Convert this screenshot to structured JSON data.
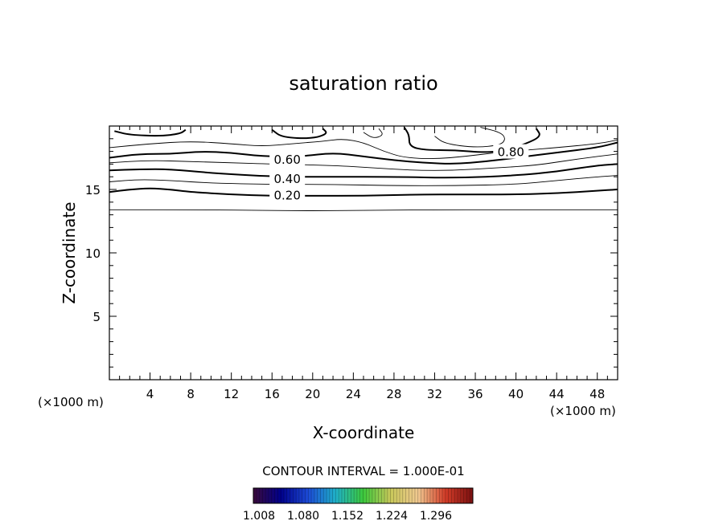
{
  "chart_data": {
    "type": "contour",
    "title": "saturation ratio",
    "xlabel": "X-coordinate",
    "ylabel": "Z-coordinate",
    "x_unit_label": "(×1000 m)",
    "y_unit_label": "(×1000 m)",
    "xlim": [
      0,
      50
    ],
    "ylim": [
      0,
      20
    ],
    "x_ticks": [
      4,
      8,
      12,
      16,
      20,
      24,
      28,
      32,
      36,
      40,
      44,
      48
    ],
    "y_ticks": [
      5,
      10,
      15
    ],
    "contour_interval_text": "CONTOUR INTERVAL = 1.000E-01",
    "contour_labels": [
      {
        "text": "0.20",
        "x": 17.5,
        "y": 14.6
      },
      {
        "text": "0.40",
        "x": 17.5,
        "y": 15.9
      },
      {
        "text": "0.60",
        "x": 17.5,
        "y": 17.4
      },
      {
        "text": "0.80",
        "x": 39.5,
        "y": 18.0
      }
    ],
    "contours": [
      {
        "level": 0.1,
        "bold": false,
        "points": [
          [
            0,
            13.4
          ],
          [
            10,
            13.4
          ],
          [
            20,
            13.3
          ],
          [
            30,
            13.4
          ],
          [
            40,
            13.4
          ],
          [
            50,
            13.4
          ]
        ]
      },
      {
        "level": 0.2,
        "bold": true,
        "points": [
          [
            0,
            14.8
          ],
          [
            2,
            15.0
          ],
          [
            4,
            15.1
          ],
          [
            6,
            15.0
          ],
          [
            8,
            14.8
          ],
          [
            12,
            14.6
          ],
          [
            16,
            14.5
          ],
          [
            20,
            14.5
          ],
          [
            25,
            14.5
          ],
          [
            30,
            14.6
          ],
          [
            35,
            14.6
          ],
          [
            40,
            14.6
          ],
          [
            44,
            14.7
          ],
          [
            48,
            14.9
          ],
          [
            50,
            15.0
          ]
        ]
      },
      {
        "level": 0.3,
        "bold": false,
        "points": [
          [
            0,
            15.6
          ],
          [
            3,
            15.8
          ],
          [
            6,
            15.7
          ],
          [
            10,
            15.5
          ],
          [
            16,
            15.4
          ],
          [
            22,
            15.4
          ],
          [
            28,
            15.3
          ],
          [
            34,
            15.3
          ],
          [
            40,
            15.4
          ],
          [
            44,
            15.7
          ],
          [
            48,
            16.0
          ],
          [
            50,
            16.1
          ]
        ]
      },
      {
        "level": 0.4,
        "bold": true,
        "points": [
          [
            0,
            16.5
          ],
          [
            3,
            16.6
          ],
          [
            6,
            16.6
          ],
          [
            10,
            16.3
          ],
          [
            16,
            16.0
          ],
          [
            22,
            16.0
          ],
          [
            28,
            16.0
          ],
          [
            34,
            15.9
          ],
          [
            40,
            16.1
          ],
          [
            44,
            16.4
          ],
          [
            48,
            16.9
          ],
          [
            50,
            17.0
          ]
        ]
      },
      {
        "level": 0.5,
        "bold": false,
        "points": [
          [
            0,
            17.1
          ],
          [
            4,
            17.3
          ],
          [
            8,
            17.2
          ],
          [
            12,
            17.1
          ],
          [
            16,
            17.0
          ],
          [
            22,
            16.9
          ],
          [
            26,
            16.7
          ],
          [
            30,
            16.5
          ],
          [
            34,
            16.5
          ],
          [
            38,
            16.7
          ],
          [
            42,
            16.9
          ],
          [
            46,
            17.4
          ],
          [
            50,
            17.8
          ]
        ]
      },
      {
        "level": 0.6,
        "bold": true,
        "points": [
          [
            0,
            17.5
          ],
          [
            3,
            17.8
          ],
          [
            6,
            17.8
          ],
          [
            9,
            18.0
          ],
          [
            12,
            17.9
          ],
          [
            15,
            17.6
          ],
          [
            19,
            17.6
          ],
          [
            22,
            17.9
          ],
          [
            25,
            17.6
          ],
          [
            28,
            17.3
          ],
          [
            31,
            17.1
          ],
          [
            34,
            17.0
          ],
          [
            37,
            17.2
          ],
          [
            40,
            17.5
          ],
          [
            44,
            17.9
          ],
          [
            48,
            18.3
          ],
          [
            50,
            18.7
          ]
        ]
      },
      {
        "level": 0.7,
        "bold": false,
        "points": [
          [
            0,
            18.3
          ],
          [
            4,
            18.6
          ],
          [
            8,
            18.8
          ],
          [
            12,
            18.6
          ],
          [
            15,
            18.4
          ],
          [
            18,
            18.6
          ],
          [
            21,
            18.8
          ],
          [
            23,
            19.0
          ],
          [
            25,
            18.7
          ],
          [
            27,
            18.0
          ],
          [
            29,
            17.5
          ],
          [
            32,
            17.4
          ],
          [
            35,
            17.6
          ],
          [
            38,
            17.9
          ],
          [
            41,
            18.1
          ],
          [
            44,
            18.3
          ],
          [
            48,
            18.6
          ],
          [
            50,
            18.9
          ]
        ]
      },
      {
        "level": 0.8,
        "bold": true,
        "points": [
          [
            0.5,
            19.6
          ],
          [
            2,
            19.3
          ],
          [
            5,
            19.2
          ],
          [
            7,
            19.4
          ],
          [
            7.5,
            19.7
          ]
        ]
      },
      {
        "level": 0.8,
        "bold": true,
        "points": [
          [
            16,
            19.7
          ],
          [
            17,
            19.1
          ],
          [
            20,
            19.0
          ],
          [
            21.5,
            19.4
          ],
          [
            21,
            19.8
          ]
        ]
      },
      {
        "level": 0.8,
        "bold": true,
        "points": [
          [
            29,
            19.9
          ],
          [
            29.5,
            19.3
          ],
          [
            29.5,
            18.4
          ],
          [
            31,
            18.1
          ],
          [
            34,
            18.1
          ],
          [
            37,
            17.9
          ],
          [
            39,
            18.1
          ],
          [
            41,
            18.6
          ],
          [
            42.5,
            19.2
          ],
          [
            42,
            19.8
          ]
        ]
      },
      {
        "level": 0.9,
        "bold": false,
        "points": [
          [
            32,
            19.2
          ],
          [
            33,
            18.6
          ],
          [
            36,
            18.3
          ],
          [
            38.5,
            18.5
          ],
          [
            39,
            19.0
          ],
          [
            38.5,
            19.5
          ],
          [
            36.5,
            19.9
          ]
        ]
      },
      {
        "level": 0.9,
        "bold": false,
        "points": [
          [
            25,
            19.5
          ],
          [
            26,
            19.0
          ],
          [
            27,
            19.3
          ],
          [
            26.5,
            19.8
          ]
        ]
      }
    ],
    "colorbar": {
      "tick_labels": [
        "1.008",
        "1.080",
        "1.152",
        "1.224",
        "1.296"
      ],
      "colors": [
        "#3a0a3a",
        "#00008b",
        "#1c4bd6",
        "#1fb0c8",
        "#3cc83c",
        "#c8c85a",
        "#f0c890",
        "#d23c28",
        "#7a1010"
      ]
    }
  }
}
